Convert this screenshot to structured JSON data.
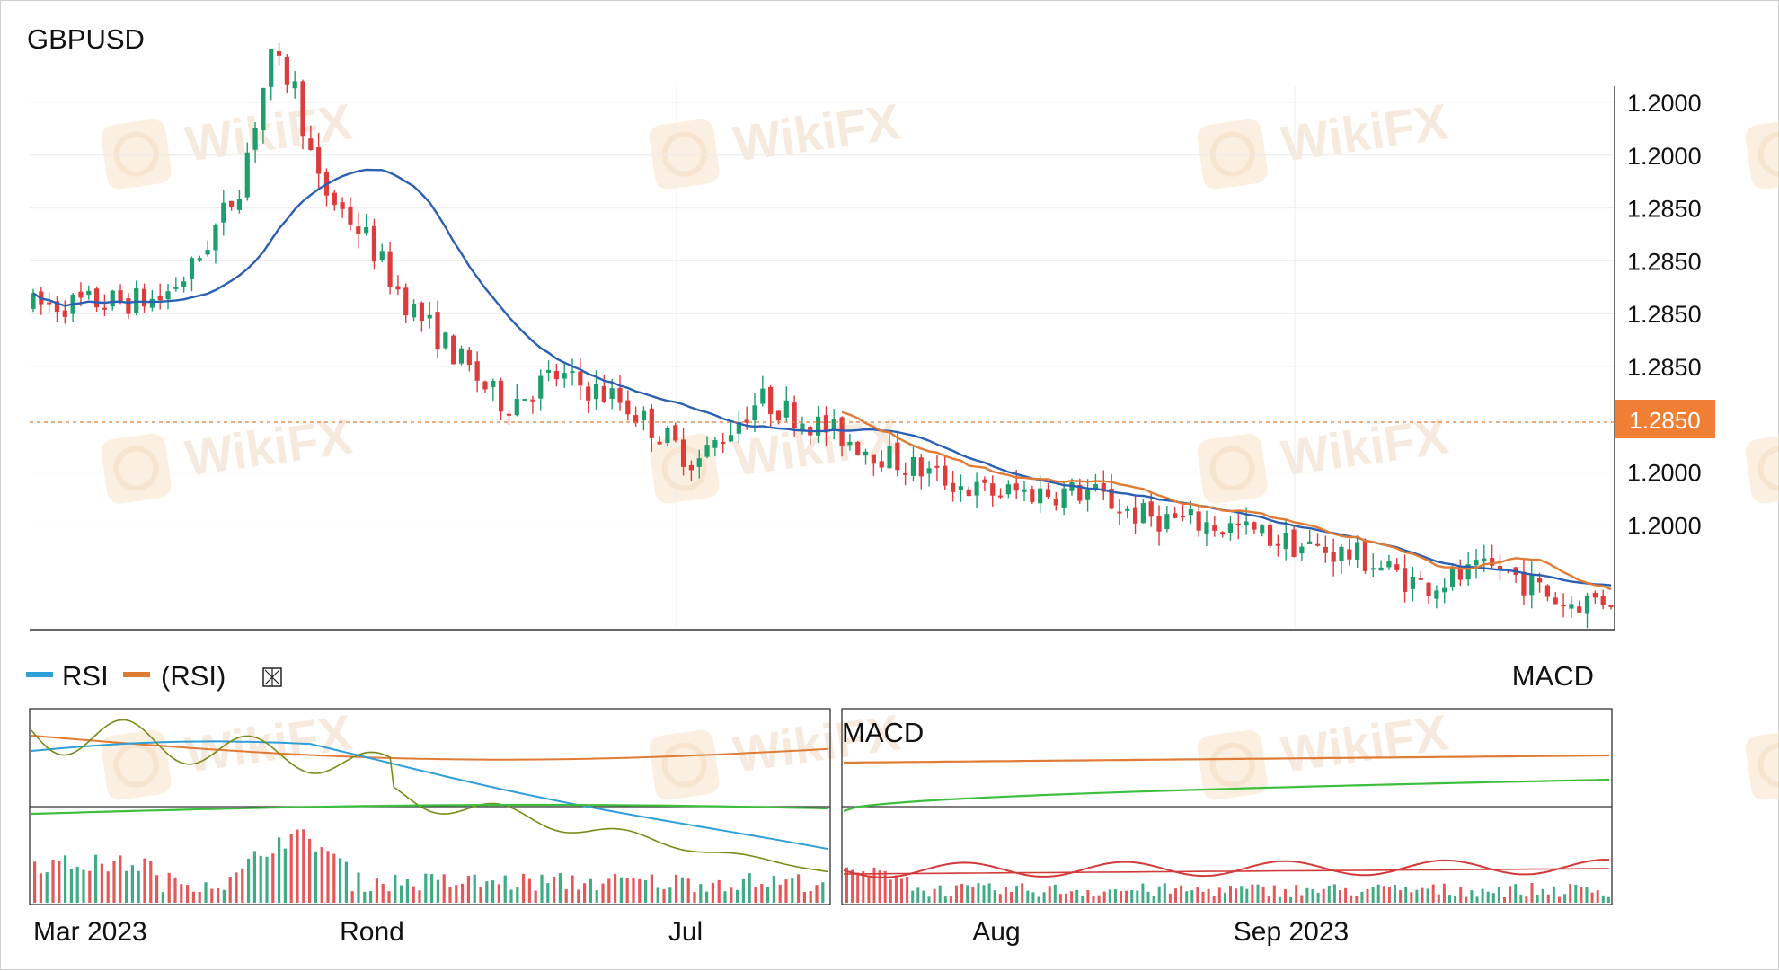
{
  "colors": {
    "up": "#1f9e6d",
    "down": "#de3b3b",
    "sma_fast": "#e07b35",
    "sma_slow": "#2b5fb3",
    "current_price_bg": "#f07f33",
    "grid": "#ececec",
    "rsi_blue": "#2f9fd8",
    "rsi_orange": "#e07b35",
    "rsi_olive": "#7a8a18",
    "rsi_brown": "#b0801a",
    "green_line": "#3cbf3c",
    "macd_red": "#d23a3a",
    "watermark": "#f0d9c6"
  },
  "chart_data": [
    {
      "type": "candlestick",
      "title": "GBPUSD",
      "price_axis_labels": [
        "1.2000",
        "1.2000",
        "1.2850",
        "1.2850",
        "1.2850",
        "1.2850",
        "1.2850",
        "1.2000",
        "1.2000"
      ],
      "current_price": "1.2850",
      "x_tick_labels": [
        "Mar 2023",
        "Rond",
        "Jul",
        "Aug",
        "Sep 2023"
      ],
      "series": [
        {
          "type": "candles",
          "values_note": "approximately 200 daily candles: rally from ~0.79 to ~0.97, then steady decline to ~0.05 (relative scale)"
        },
        {
          "type": "line",
          "color": "sma_slow"
        },
        {
          "type": "line",
          "color": "sma_fast"
        }
      ],
      "reference_line": "dashed at current price",
      "grid": true
    },
    {
      "type": "line",
      "legend": [
        {
          "name": "RSI",
          "color": "rsi_blue"
        },
        {
          "name": "(RSI)",
          "color": "rsi_orange"
        }
      ],
      "histogram": true
    },
    {
      "type": "line",
      "title": "MACD",
      "header_label": "MACD",
      "histogram": true
    }
  ],
  "watermark": "WikiFX"
}
